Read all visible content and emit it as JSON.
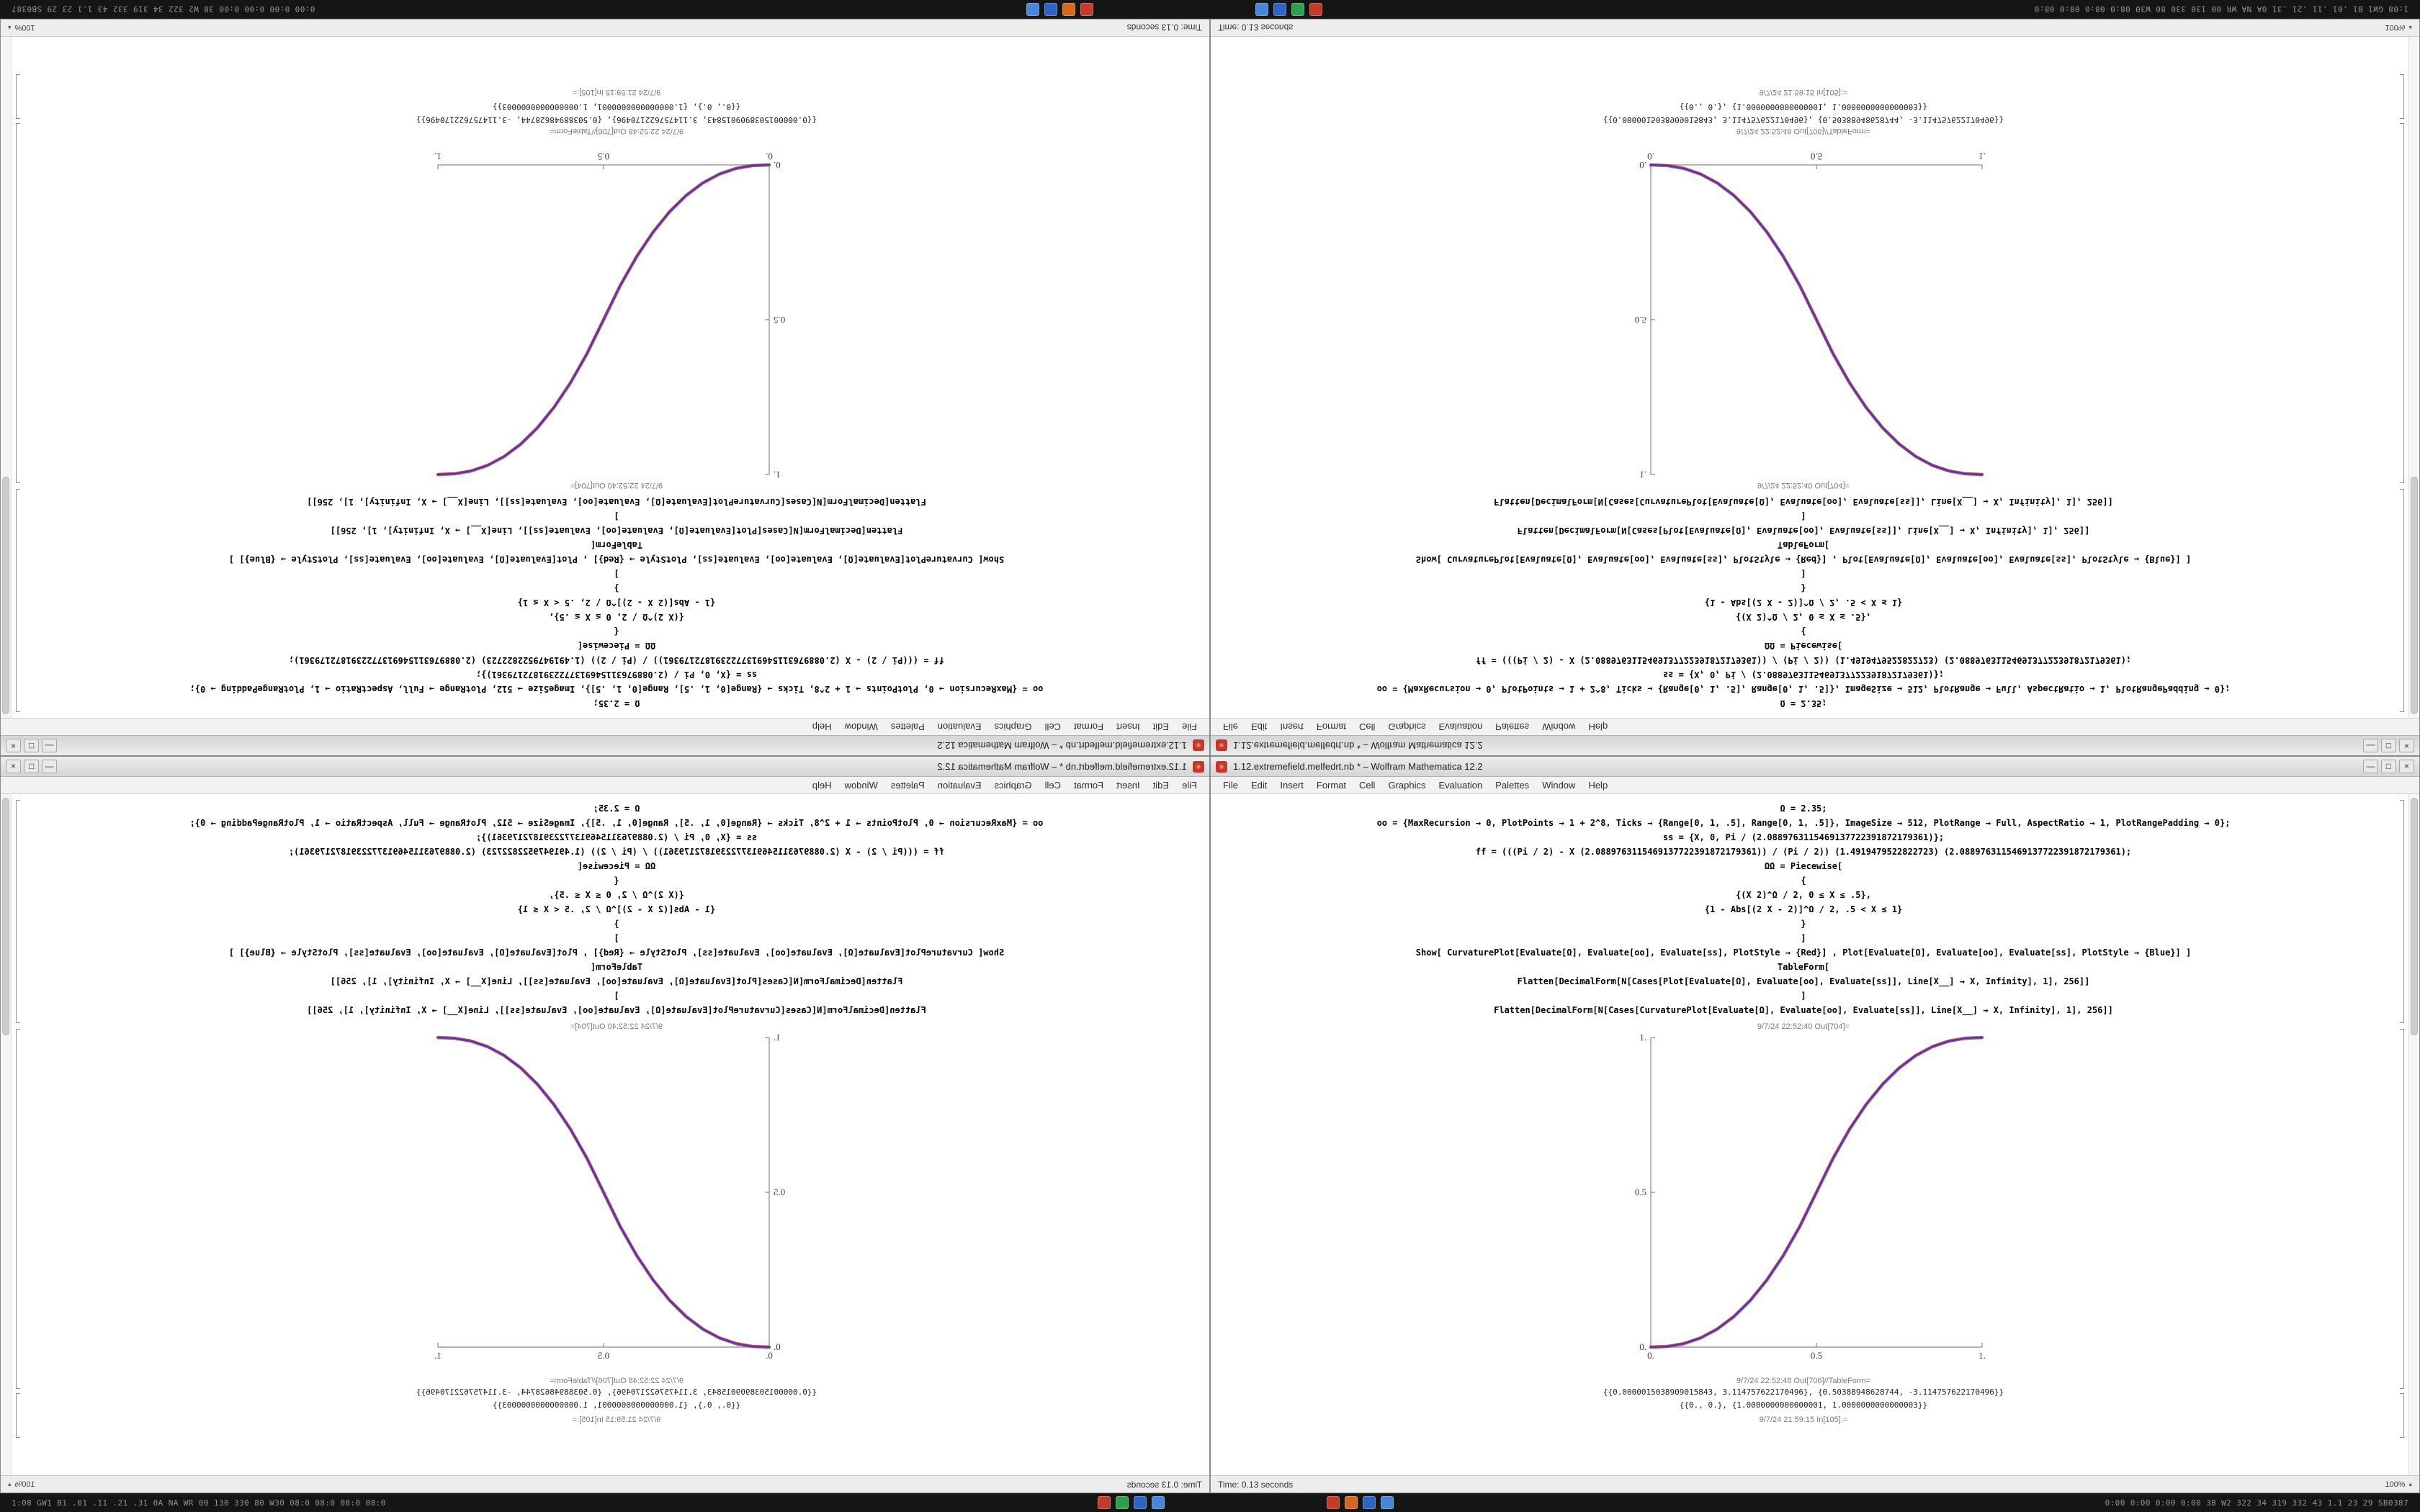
{
  "meta": {
    "app": "Wolfram Mathematica",
    "layout_note": "Same notebook window tiled in four orientations (2x2)"
  },
  "taskbar": {
    "left_text": "1:08 GW1 B1 .01 .11 .21 .31 0A NA WR 00 130 330 80 W30 08:0 08:0 08:0 08:0",
    "right_text": "0:00 0:00 0:00 0:00 38 W2 322 34 319 332 43 1.1 23 29 SB0387",
    "icons_left": [
      {
        "name": "mathematica-kernel-icon",
        "color": "#c23b2e"
      },
      {
        "name": "green-app-icon",
        "color": "#2e9e4f"
      },
      {
        "name": "blue-app-icon",
        "color": "#2f63c4"
      },
      {
        "name": "lightblue-app-icon",
        "color": "#4a86d8"
      }
    ],
    "icons_right": [
      {
        "name": "red-app-icon",
        "color": "#c23b2e"
      },
      {
        "name": "orange-app-icon",
        "color": "#d2691e"
      },
      {
        "name": "blue-app-icon-2",
        "color": "#2f63c4"
      },
      {
        "name": "lightblue-app-icon-2",
        "color": "#4a86d8"
      }
    ]
  },
  "quadrants": [
    {
      "id": "q-tl",
      "label": "top-left",
      "transform": "rotate-180"
    },
    {
      "id": "q-tr",
      "label": "top-right",
      "transform": "flip-vertical"
    },
    {
      "id": "q-bl",
      "label": "bottom-left",
      "transform": "flip-horizontal"
    },
    {
      "id": "q-br",
      "label": "bottom-right",
      "transform": "none"
    }
  ],
  "window": {
    "title": "1.12.extremefield.melfedrt.nb * – Wolfram Mathematica 12.2",
    "window_buttons": {
      "minimize": "—",
      "maximize": "□",
      "close": "×"
    },
    "menu_items": [
      "File",
      "Edit",
      "Insert",
      "Format",
      "Cell",
      "Graphics",
      "Evaluation",
      "Palettes",
      "Window",
      "Help"
    ],
    "code_lines": [
      "Ω = 2.35;",
      "oo = {MaxRecursion → 0, PlotPoints → 1 + 2^8, Ticks → {Range[0, 1, .5], Range[0, 1, .5]}, ImageSize → 512, PlotRange → Full, AspectRatio → 1, PlotRangePadding → 0};",
      "ss = {X, 0, Pi / (2.0889763115469137722391872179361)};",
      "ff = (((Pi / 2) - X (2.0889763115469137722391872179361)) / (Pi / 2)) (1.4919479522822723) (2.0889763115469137722391872179361);",
      "ΩΩ = Piecewise[",
      "{",
      "{(X 2)^Ω / 2, 0 ≤ X ≤ .5},",
      "{1 - Abs[(2 X - 2)]^Ω / 2, .5 < X ≤ 1}",
      "}",
      "]",
      "Show[  CurvaturePlot[Evaluate[Ω], Evaluate[oo], Evaluate[ss], PlotStyle → {Red}]  ,  Plot[Evaluate[Ω], Evaluate[oo], Evaluate[ss], PlotStyle → {Blue}]  ]",
      "TableForm[",
      "Flatten[DecimalForm[N[Cases[Plot[Evaluate[Ω], Evaluate[oo], Evaluate[ss]], Line[X__] → X, Infinity], 1], 256]]",
      "]",
      "Flatten[DecimalForm[N[Cases[CurvaturePlot[Evaluate[Ω], Evaluate[oo], Evaluate[ss]], Line[X__] → X, Infinity], 1], 256]]"
    ],
    "out_plot_label": "9/7/24 22:52:40 Out[704]=",
    "out_table_label": "9/7/24 22:52:48 Out[706]//TableForm=",
    "table_lines": [
      "{{0.0000015038909015843, 3.114757622170496}, {0.50388948628744, -3.114757622170496}}",
      "{{0., 0.}, {1.0000000000000001, 1.0000000000000003}}"
    ],
    "in_next_label": "9/7/24 21:59:15 In[105]:=",
    "status_left": "Time: 0.13 seconds",
    "status_zoom": "100%"
  },
  "chart_data": {
    "type": "line",
    "title": "",
    "xlabel": "",
    "ylabel": "",
    "xlim": [
      0,
      1
    ],
    "ylim": [
      0,
      1
    ],
    "xticks": [
      0,
      0.5,
      1
    ],
    "yticks": [
      0,
      0.5,
      1
    ],
    "xtick_labels": [
      "0.",
      "0.5",
      "1."
    ],
    "ytick_labels": [
      "0.",
      "0.5",
      "1."
    ],
    "grid": false,
    "legend": "none",
    "x": [
      0,
      0.05,
      0.1,
      0.15,
      0.2,
      0.25,
      0.3,
      0.35,
      0.4,
      0.45,
      0.5,
      0.55,
      0.6,
      0.65,
      0.7,
      0.75,
      0.8,
      0.85,
      0.9,
      0.95,
      1
    ],
    "series": [
      {
        "name": "CurvaturePlot (Red)",
        "color": "#d42a2a",
        "values": [
          0,
          0.0022,
          0.0114,
          0.0295,
          0.058,
          0.098,
          0.1505,
          0.2163,
          0.296,
          0.3903,
          0.5,
          0.6097,
          0.704,
          0.7837,
          0.8495,
          0.902,
          0.942,
          0.9705,
          0.9886,
          0.9978,
          1
        ]
      },
      {
        "name": "Plot (Blue)",
        "color": "#3340cc",
        "values": [
          0,
          0.0022,
          0.0114,
          0.0295,
          0.058,
          0.098,
          0.1505,
          0.2163,
          0.296,
          0.3903,
          0.5,
          0.6097,
          0.704,
          0.7837,
          0.8495,
          0.902,
          0.942,
          0.9705,
          0.9886,
          0.9978,
          1
        ]
      }
    ],
    "description": "Piecewise power ease S-curve from (0,0) to (1,1); red and blue curves overlap appearing magenta. Shown ascending in bottom-right/top-left quadrants and mirrored (descending) in the other two."
  }
}
